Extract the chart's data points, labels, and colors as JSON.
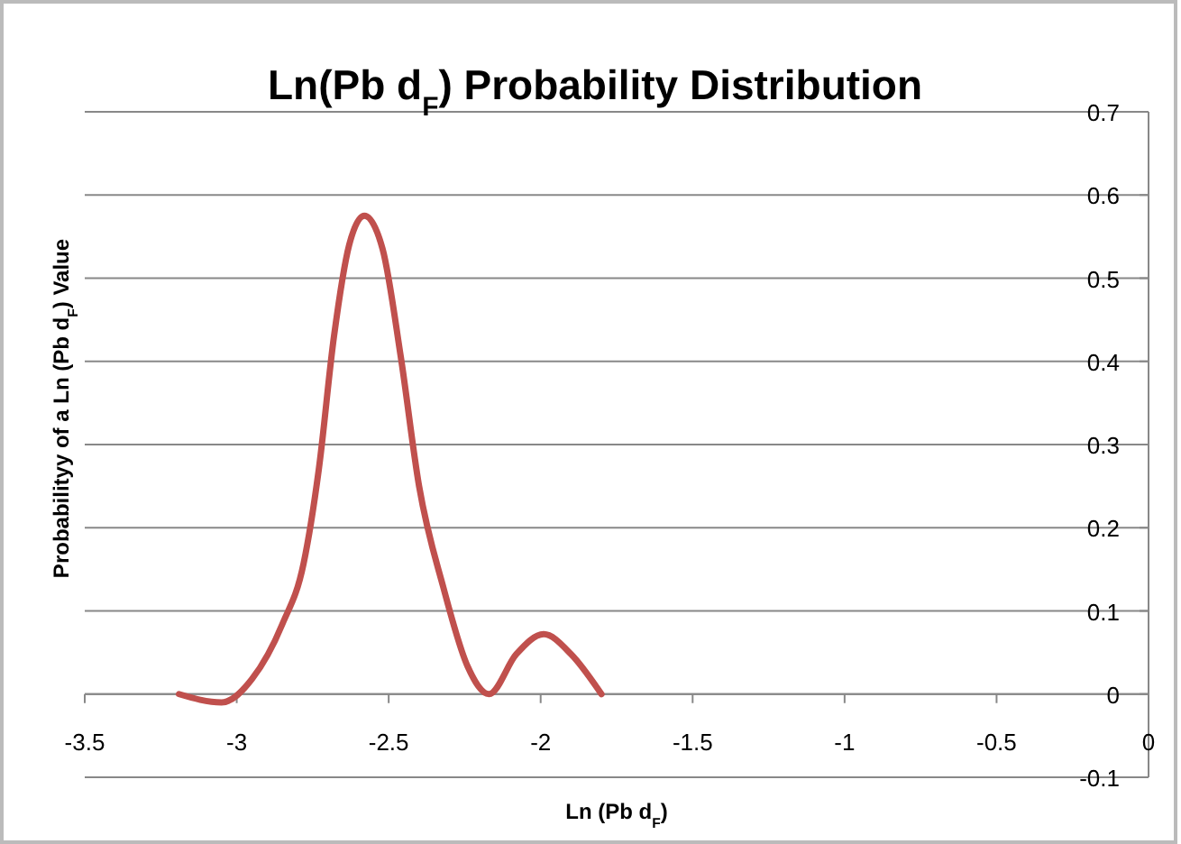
{
  "chart_data": {
    "type": "line",
    "title": "Ln(Pb d$_{F}$) Probability Distribution",
    "xlabel": "Ln (Pb d$_{F}$)",
    "ylabel": "Probabilityy  of a Ln (Pb d$_{F}$) Value",
    "x": [
      -3.19,
      -3.05,
      -2.95,
      -2.85,
      -2.78,
      -2.73,
      -2.68,
      -2.63,
      -2.58,
      -2.52,
      -2.46,
      -2.4,
      -2.32,
      -2.24,
      -2.17,
      -2.08,
      -1.99,
      -1.9,
      -1.8
    ],
    "series": [
      {
        "color": "#c0504d",
        "values": [
          0,
          -0.01,
          0.018,
          0.084,
          0.157,
          0.27,
          0.43,
          0.54,
          0.575,
          0.535,
          0.405,
          0.25,
          0.128,
          0.033,
          0,
          0.048,
          0.072,
          0.048,
          0
        ]
      }
    ],
    "xlim": [
      -3.5,
      0
    ],
    "xticks": [
      -3.5,
      -3,
      -2.5,
      -2,
      -1.5,
      -1,
      -0.5,
      0
    ],
    "ylim": [
      -0.1,
      0.7
    ],
    "yticks": [
      -0.1,
      0,
      0.1,
      0.2,
      0.3,
      0.4,
      0.5,
      0.6,
      0.7
    ],
    "grid": "y",
    "marker": "none",
    "line_style": "solid"
  }
}
